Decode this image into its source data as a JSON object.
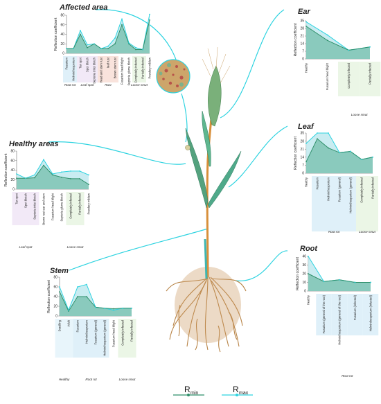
{
  "legend": {
    "rmin_label": "R",
    "rmin_sub": "min",
    "rmax_label": "R",
    "rmax_sub": "max"
  },
  "colors": {
    "rmin": "#2f8f6a",
    "rmax": "#2dd3e0",
    "connector": "#2dd3e0",
    "fill": "#7fc4b4"
  },
  "chart_data": [
    {
      "id": "affected",
      "type": "area",
      "title": "Affected area",
      "ylabel": "Reflection coefficient",
      "ylim": [
        0,
        80
      ],
      "yticks": [
        0,
        20,
        40,
        60,
        80
      ],
      "categories": [
        "Fusarium",
        "Helminthosporium",
        "Tan spot",
        "Spot blotch",
        "Septoria tritici blotch",
        "Head and stem rust",
        "leaf rust",
        "Brown stem rust",
        "Fusarium head blight",
        "Septoria glume blotch",
        "Completely infected",
        "Partially infected",
        "Powdery mildew"
      ],
      "groups": [
        {
          "label": "Root rot",
          "from": 0,
          "to": 1
        },
        {
          "label": "Leaf spot",
          "from": 2,
          "to": 4
        },
        {
          "label": "Rust",
          "from": 5,
          "to": 7
        },
        {
          "label": "Loose smut",
          "from": 10,
          "to": 11
        }
      ],
      "series": [
        {
          "key": "rmin",
          "values": [
            10,
            10,
            40,
            12,
            20,
            10,
            10,
            20,
            60,
            20,
            8,
            8,
            70
          ]
        },
        {
          "key": "rmax",
          "values": [
            10,
            10,
            48,
            18,
            20,
            10,
            15,
            32,
            72,
            22,
            12,
            8,
            82
          ]
        }
      ]
    },
    {
      "id": "ear",
      "type": "area",
      "title": "Ear",
      "ylabel": "Reflection coefficient",
      "ylim": [
        0,
        35
      ],
      "yticks": [
        0,
        7,
        14,
        21,
        28,
        35
      ],
      "categories": [
        "Healthy",
        "Fusarium head blight",
        "Completely infected",
        "Partially infected"
      ],
      "groups": [
        {
          "label": "Loose smut",
          "from": 2,
          "to": 3
        }
      ],
      "series": [
        {
          "key": "rmin",
          "values": [
            30,
            17,
            8,
            11
          ]
        },
        {
          "key": "rmax",
          "values": [
            34,
            22,
            8,
            11
          ]
        }
      ]
    },
    {
      "id": "healthy",
      "type": "area",
      "title": "Healthy areas",
      "ylabel": "Reflection coefficient",
      "ylim": [
        0,
        80
      ],
      "yticks": [
        0,
        20,
        40,
        60,
        80
      ],
      "categories": [
        "Tan spot",
        "Spot blotch",
        "Septoria tritici blotch",
        "Brown rust ear and stem",
        "Fusarium head blight",
        "Septoria glume blotch",
        "Completely infected",
        "Partially infected",
        "Powdery mildew"
      ],
      "groups": [
        {
          "label": "Leaf spot",
          "from": 0,
          "to": 2
        },
        {
          "label": "Loose smut",
          "from": 6,
          "to": 7
        }
      ],
      "series": [
        {
          "key": "rmin",
          "values": [
            23,
            23,
            24,
            50,
            30,
            25,
            22,
            22,
            10
          ]
        },
        {
          "key": "rmax",
          "values": [
            32,
            23,
            30,
            62,
            32,
            36,
            38,
            38,
            30
          ]
        }
      ]
    },
    {
      "id": "leaf",
      "type": "area",
      "title": "Leaf",
      "ylabel": "Reflection coefficient",
      "ylim": [
        0,
        35
      ],
      "yticks": [
        0,
        7,
        14,
        21,
        28,
        35
      ],
      "categories": [
        "Healthy",
        "Fusarium",
        "Helminthosporium",
        "Fusarium (general)",
        "Helminthosporium (general)",
        "Completely infected",
        "Partially infected"
      ],
      "groups": [
        {
          "label": "Root rot",
          "from": 1,
          "to": 4
        },
        {
          "label": "Loose smut",
          "from": 5,
          "to": 6
        }
      ],
      "series": [
        {
          "key": "rmin",
          "values": [
            10,
            30,
            22,
            18,
            19,
            12,
            14
          ]
        },
        {
          "key": "rmax",
          "values": [
            26,
            35,
            35,
            18,
            19,
            12,
            14
          ]
        }
      ]
    },
    {
      "id": "stem",
      "type": "area",
      "title": "Stem",
      "ylabel": "Reflection coefficient",
      "ylim": [
        0,
        80
      ],
      "yticks": [
        0,
        20,
        40,
        60,
        80
      ],
      "categories": [
        "Seedling",
        "Adult",
        "Fusarium",
        "Helminthosporium",
        "Fusarium (general)",
        "Helminthosporium (general)",
        "Fusarium head blight",
        "Completely infected",
        "Partially infected"
      ],
      "groups": [
        {
          "label": "Healthy",
          "from": 0,
          "to": 1
        },
        {
          "label": "Root rot",
          "from": 2,
          "to": 5
        },
        {
          "label": "Loose smut",
          "from": 7,
          "to": 8
        }
      ],
      "series": [
        {
          "key": "rmin",
          "values": [
            50,
            10,
            40,
            40,
            18,
            16,
            15,
            16,
            16
          ]
        },
        {
          "key": "rmax",
          "values": [
            60,
            12,
            60,
            65,
            18,
            16,
            12,
            16,
            16
          ]
        }
      ]
    },
    {
      "id": "root",
      "type": "area",
      "title": "Root",
      "ylabel": "Reflection coefficient",
      "ylim": [
        0,
        40
      ],
      "yticks": [
        0,
        10,
        20,
        30,
        40
      ],
      "categories": [
        "Healthy",
        "Fusarium (general of the root)",
        "Helminthosporium (general of the root)",
        "Fusarium (infected)",
        "Helminthosporium (infected)"
      ],
      "groups": [
        {
          "label": "Root rot",
          "from": 1,
          "to": 4
        }
      ],
      "series": [
        {
          "key": "rmin",
          "values": [
            20,
            11,
            13,
            10,
            10
          ]
        },
        {
          "key": "rmax",
          "values": [
            40,
            11,
            13,
            10,
            10
          ]
        }
      ]
    }
  ]
}
